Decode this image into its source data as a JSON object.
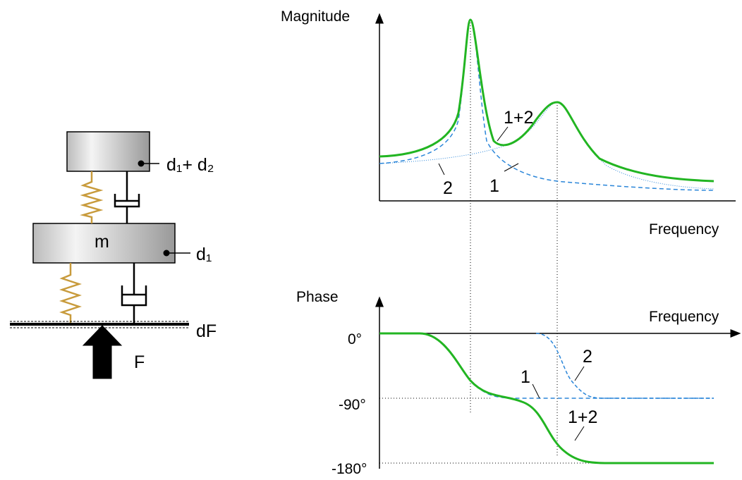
{
  "mechanics": {
    "mass_label": "m",
    "upper_label": "d₁+ d₂",
    "lower_label": "d₁",
    "base_label": "dF",
    "force_label": "F"
  },
  "magnitude_plot": {
    "y_label": "Magnitude",
    "x_label": "Frequency",
    "curve_labels": [
      "1+2",
      "2",
      "1"
    ]
  },
  "phase_plot": {
    "y_label": "Phase",
    "x_label": "Frequency",
    "ticks": [
      "0°",
      "-90°",
      "-180°"
    ],
    "curve_labels": [
      "1",
      "2",
      "1+2"
    ]
  }
}
